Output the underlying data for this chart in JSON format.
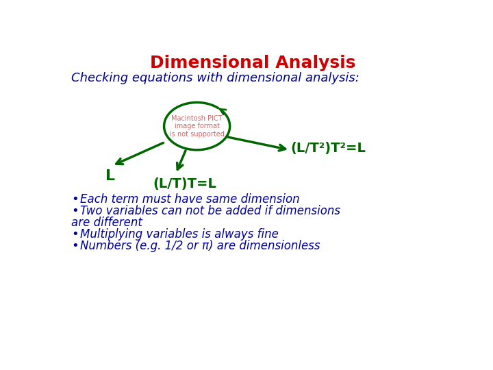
{
  "title": "Dimensional Analysis",
  "title_color": "#CC0000",
  "title_fontsize": 18,
  "subtitle": "Checking equations with dimensional analysis:",
  "subtitle_color": "#000099",
  "subtitle_fontsize": 13,
  "bullet_color": "#000099",
  "bullet_fontsize": 12,
  "bullets": [
    "Each term must have same dimension",
    "Two variables can not be added if dimensions\nare different",
    "Multiplying variables is always fine",
    "Numbers (e.g. 1/2 or π) are dimensionless"
  ],
  "arrow_color": "#006600",
  "label_L": "L",
  "label_LT": "(L/T)T=L",
  "label_LT2": "(L/T²)T²=L",
  "circle_label": "Macintosh PICT\nimage format\nis not supported",
  "circle_label_color": "#CC6666",
  "bg_color": "#ffffff"
}
